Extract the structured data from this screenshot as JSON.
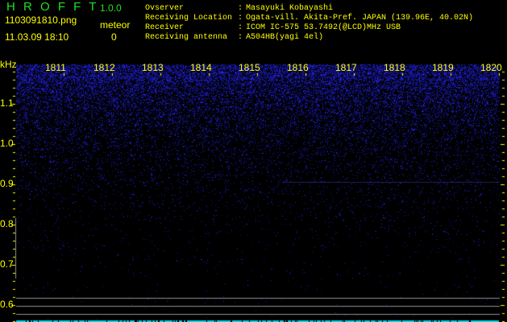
{
  "header": {
    "app_title": "H R O F F T",
    "version": "1.0.0",
    "filename": "1103091810.png",
    "datetime": "11.03.09 18:10",
    "meteor_label": "meteor",
    "meteor_count": "0"
  },
  "info": [
    {
      "label": "Ovserver",
      "value": "Masayuki Kobayashi"
    },
    {
      "label": "Receiving Location",
      "value": "Ogata-vill. Akita-Pref. JAPAN (139.96E, 40.02N)"
    },
    {
      "label": "Receiver",
      "value": "ICOM IC-575 53.7492(@LCD)MHz USB"
    },
    {
      "label": "Receiving antenna",
      "value": "A504HB(yagi 4el)"
    }
  ],
  "spectrogram": {
    "y_unit": "kHz",
    "y_ticks": [
      "1.1",
      "1.0",
      "0.9",
      "0.8",
      "0.7",
      "0.6"
    ],
    "time_ticks": [
      "1811",
      "1812",
      "1813",
      "1814",
      "1815",
      "1816",
      "1817",
      "1818",
      "1819",
      "1820"
    ],
    "colors": {
      "axis": "#ffff00",
      "noise": "#2020ff",
      "title": "#22e022",
      "marker": "#00d8e8",
      "guide": "#909090"
    }
  }
}
